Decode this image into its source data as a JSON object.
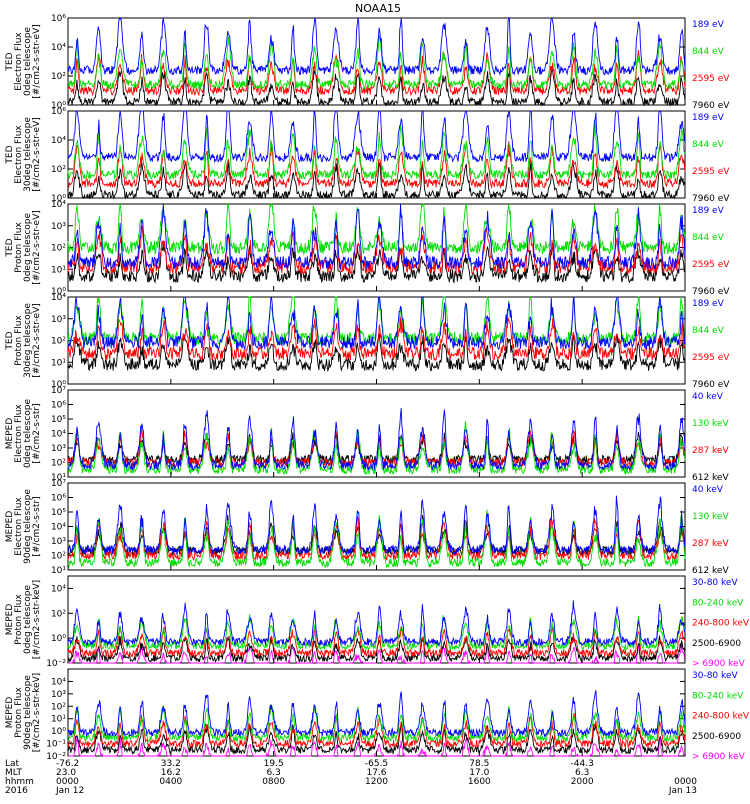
{
  "chart_data": {
    "type": "line",
    "title": "NOAA15",
    "x_start": "2016 Jan 12 00:00",
    "x_end": "2016 Jan 13 00:00",
    "panels": [
      {
        "ylabel": [
          "TED",
          "Electron Flux",
          "0deg telescope",
          "[#/cm2-s-str-eV]"
        ],
        "ylog": [
          0,
          6
        ],
        "yticks": [
          {
            "v": 0,
            "t": "10⁰"
          },
          {
            "v": 2,
            "t": "10²"
          },
          {
            "v": 4,
            "t": "10⁴"
          },
          {
            "v": 6,
            "t": "10⁶"
          }
        ],
        "series": [
          {
            "name": "7960 eV",
            "color": "#000000",
            "base": 0.2,
            "spike": 2.5
          },
          {
            "name": "2595 eV",
            "color": "#ff0000",
            "base": 1.0,
            "spike": 3.0
          },
          {
            "name": "844 eV",
            "color": "#00dd00",
            "base": 1.4,
            "spike": 3.6
          },
          {
            "name": "189 eV",
            "color": "#0000ff",
            "base": 2.4,
            "spike": 4.6
          }
        ]
      },
      {
        "ylabel": [
          "TED",
          "Electron Flux",
          "30deg telescope",
          "[#/cm2-s-str-eV]"
        ],
        "ylog": [
          0,
          6
        ],
        "yticks": [
          {
            "v": 0,
            "t": "10⁰"
          },
          {
            "v": 2,
            "t": "10²"
          },
          {
            "v": 4,
            "t": "10⁴"
          },
          {
            "v": 6,
            "t": "10⁶"
          }
        ],
        "series": [
          {
            "name": "7960 eV",
            "color": "#000000",
            "base": 0.2,
            "spike": 2.5
          },
          {
            "name": "2595 eV",
            "color": "#ff0000",
            "base": 1.0,
            "spike": 3.0
          },
          {
            "name": "844 eV",
            "color": "#00dd00",
            "base": 1.6,
            "spike": 3.8
          },
          {
            "name": "189 eV",
            "color": "#0000ff",
            "base": 2.8,
            "spike": 4.8
          }
        ]
      },
      {
        "ylabel": [
          "TED",
          "Proton Flux",
          "0deg telescope",
          "[#/cm2-s-str-eV]"
        ],
        "ylog": [
          0,
          4
        ],
        "yticks": [
          {
            "v": 0,
            "t": "10⁰"
          },
          {
            "v": 1,
            "t": "10¹"
          },
          {
            "v": 2,
            "t": "10²"
          },
          {
            "v": 3,
            "t": "10³"
          },
          {
            "v": 4,
            "t": "10⁴"
          }
        ],
        "series": [
          {
            "name": "7960 eV",
            "color": "#000000",
            "base": 0.7,
            "spike": 1.6
          },
          {
            "name": "2595 eV",
            "color": "#ff0000",
            "base": 1.1,
            "spike": 1.9
          },
          {
            "name": "844 eV",
            "color": "#00dd00",
            "base": 2.0,
            "spike": 2.5
          },
          {
            "name": "189 eV",
            "color": "#0000ff",
            "base": 1.3,
            "spike": 2.9
          }
        ]
      },
      {
        "ylabel": [
          "TED",
          "Proton Flux",
          "30deg telescope",
          "[#/cm2-s-str-eV]"
        ],
        "ylog": [
          0,
          4
        ],
        "yticks": [
          {
            "v": 0,
            "t": "10⁰"
          },
          {
            "v": 1,
            "t": "10¹"
          },
          {
            "v": 2,
            "t": "10²"
          },
          {
            "v": 3,
            "t": "10³"
          },
          {
            "v": 4,
            "t": "10⁴"
          }
        ],
        "series": [
          {
            "name": "7960 eV",
            "color": "#000000",
            "base": 0.9,
            "spike": 1.5
          },
          {
            "name": "2595 eV",
            "color": "#ff0000",
            "base": 1.4,
            "spike": 1.8
          },
          {
            "name": "844 eV",
            "color": "#00dd00",
            "base": 2.1,
            "spike": 2.5
          },
          {
            "name": "189 eV",
            "color": "#0000ff",
            "base": 1.9,
            "spike": 2.6
          }
        ]
      },
      {
        "ylabel": [
          "MEPED",
          "Electron Flux",
          "0deg telescope",
          "[#/cm2-s-str]"
        ],
        "ylog": [
          1,
          7
        ],
        "yticks": [
          {
            "v": 1,
            "t": "10¹"
          },
          {
            "v": 2,
            "t": "10²"
          },
          {
            "v": 3,
            "t": "10³"
          },
          {
            "v": 4,
            "t": "10⁴"
          },
          {
            "v": 5,
            "t": "10⁵"
          },
          {
            "v": 6,
            "t": "10⁶"
          },
          {
            "v": 7,
            "t": "10⁷"
          }
        ],
        "series": [
          {
            "name": "612 keV",
            "color": "#000000",
            "base": 2.2,
            "spike": 2.0
          },
          {
            "name": "287 keV",
            "color": "#ff0000",
            "base": 2.0,
            "spike": 2.5
          },
          {
            "name": "130 keV",
            "color": "#00dd00",
            "base": 1.5,
            "spike": 3.3
          },
          {
            "name": "40 keV",
            "color": "#0000ff",
            "base": 1.8,
            "spike": 4.3
          }
        ]
      },
      {
        "ylabel": [
          "MEPED",
          "Electron Flux",
          "90deg telescope",
          "[#/cm2-s-str]"
        ],
        "ylog": [
          1,
          7
        ],
        "yticks": [
          {
            "v": 1,
            "t": "10¹"
          },
          {
            "v": 2,
            "t": "10²"
          },
          {
            "v": 3,
            "t": "10³"
          },
          {
            "v": 4,
            "t": "10⁴"
          },
          {
            "v": 5,
            "t": "10⁵"
          },
          {
            "v": 6,
            "t": "10⁶"
          },
          {
            "v": 7,
            "t": "10⁷"
          }
        ],
        "series": [
          {
            "name": "612 keV",
            "color": "#000000",
            "base": 2.3,
            "spike": 2.4
          },
          {
            "name": "287 keV",
            "color": "#ff0000",
            "base": 2.0,
            "spike": 2.9
          },
          {
            "name": "130 keV",
            "color": "#00dd00",
            "base": 1.5,
            "spike": 3.8
          },
          {
            "name": "40 keV",
            "color": "#0000ff",
            "base": 2.4,
            "spike": 4.0
          }
        ]
      },
      {
        "ylabel": [
          "MEPED",
          "Proton Flux",
          "0deg telescope",
          "[#/cm2-s-str-keV]"
        ],
        "ylog": [
          -2,
          5
        ],
        "yticks": [
          {
            "v": -2,
            "t": "10⁻²"
          },
          {
            "v": 0,
            "t": "10⁰"
          },
          {
            "v": 2,
            "t": "10²"
          },
          {
            "v": 4,
            "t": "10⁴"
          }
        ],
        "series": [
          {
            "name": "> 6900 keV",
            "color": "#ff00ff",
            "base": -2.3,
            "spike": 1.8
          },
          {
            "name": "2500-6900",
            "color": "#000000",
            "base": -1.6,
            "spike": 2.0
          },
          {
            "name": "240-800 keV",
            "color": "#ff0000",
            "base": -1.2,
            "spike": 2.4
          },
          {
            "name": "80-240 keV",
            "color": "#00dd00",
            "base": -0.6,
            "spike": 2.8
          },
          {
            "name": "30-80 keV",
            "color": "#0000ff",
            "base": -0.3,
            "spike": 3.4
          }
        ]
      },
      {
        "ylabel": [
          "MEPED",
          "Proton Flux",
          "90deg telescope",
          "[#/cm2-s-str-keV]"
        ],
        "ylog": [
          -2,
          5
        ],
        "yticks": [
          {
            "v": -2,
            "t": "10⁻²"
          },
          {
            "v": -1,
            "t": "10⁻¹"
          },
          {
            "v": 0,
            "t": "10⁰"
          },
          {
            "v": 1,
            "t": "10¹"
          },
          {
            "v": 2,
            "t": "10²"
          },
          {
            "v": 3,
            "t": "10³"
          },
          {
            "v": 4,
            "t": "10⁴"
          }
        ],
        "series": [
          {
            "name": "> 6900 keV",
            "color": "#ff00ff",
            "base": -2.3,
            "spike": 1.8
          },
          {
            "name": "2500-6900",
            "color": "#000000",
            "base": -1.5,
            "spike": 2.2
          },
          {
            "name": "240-800 keV",
            "color": "#ff0000",
            "base": -1.0,
            "spike": 2.6
          },
          {
            "name": "80-240 keV",
            "color": "#00dd00",
            "base": -0.5,
            "spike": 2.8
          },
          {
            "name": "30-80 keV",
            "color": "#0000ff",
            "base": -0.1,
            "spike": 3.6
          }
        ]
      }
    ],
    "x_axis": {
      "row_labels": [
        "Lat",
        "MLT",
        "hhmm",
        "2016"
      ],
      "ticks": [
        {
          "hour": 0,
          "lat": "-76.2",
          "mlt": "23.0",
          "hhmm": "0000",
          "date": "Jan 12"
        },
        {
          "hour": 4,
          "lat": "33.2",
          "mlt": "16.2",
          "hhmm": "0400",
          "date": ""
        },
        {
          "hour": 8,
          "lat": "19.5",
          "mlt": "6.3",
          "hhmm": "0800",
          "date": ""
        },
        {
          "hour": 12,
          "lat": "-65.5",
          "mlt": "17.6",
          "hhmm": "1200",
          "date": ""
        },
        {
          "hour": 16,
          "lat": "78.5",
          "mlt": "17.0",
          "hhmm": "1600",
          "date": ""
        },
        {
          "hour": 20,
          "lat": "-44.3",
          "mlt": "6.3",
          "hhmm": "2000",
          "date": ""
        },
        {
          "hour": 24,
          "lat": "",
          "mlt": "",
          "hhmm": "0000",
          "date": "Jan 13"
        }
      ]
    }
  }
}
